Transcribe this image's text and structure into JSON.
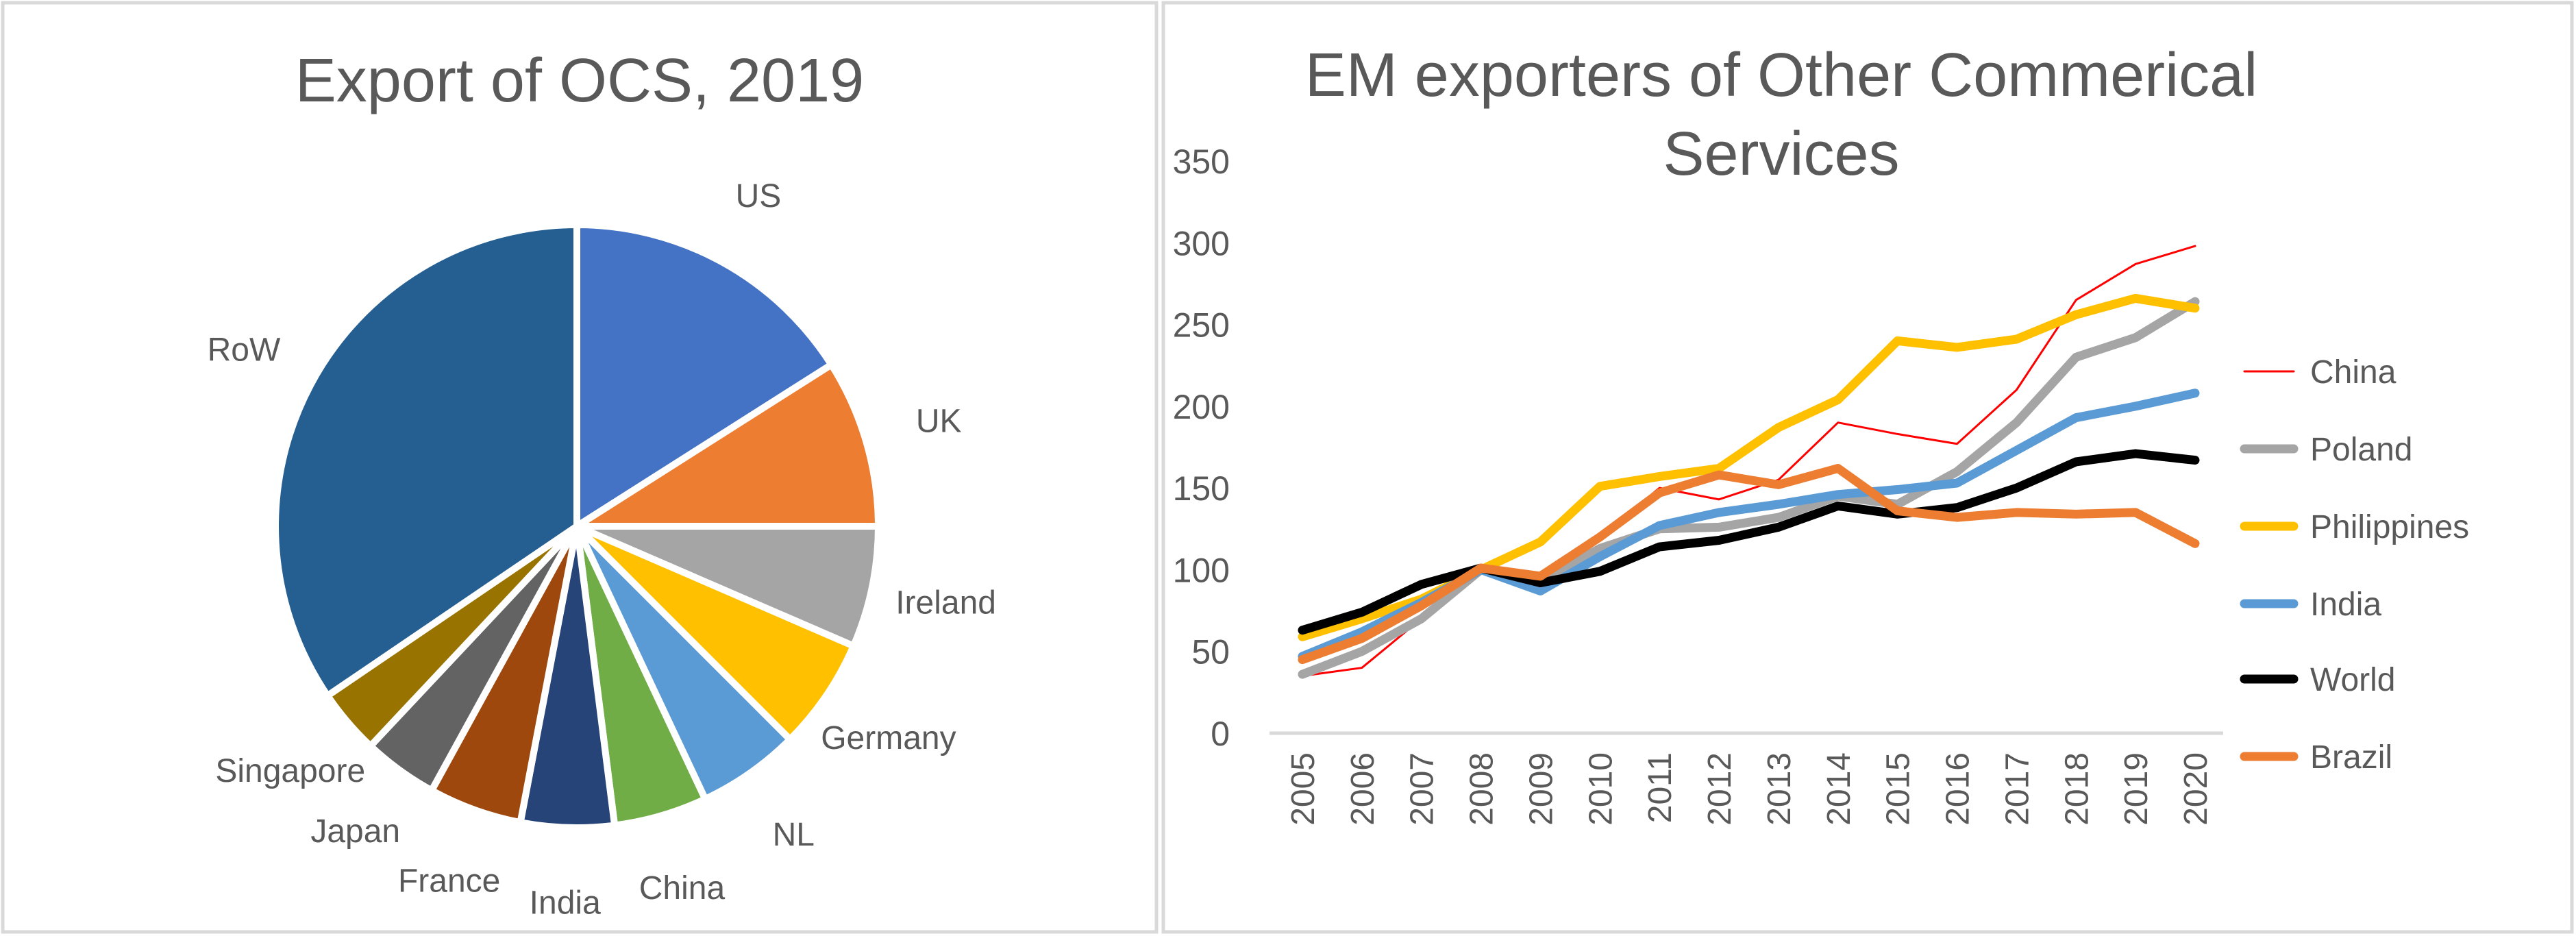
{
  "chart_data": [
    {
      "type": "pie",
      "title": "Export of OCS, 2019",
      "categories": [
        "US",
        "UK",
        "Ireland",
        "Germany",
        "NL",
        "China",
        "India",
        "France",
        "Japan",
        "Singapore",
        "RoW"
      ],
      "values": [
        16,
        9,
        6.5,
        6,
        5.5,
        5,
        5,
        5,
        4,
        3.5,
        34.5
      ],
      "unit": "percent share (estimated)",
      "colors": [
        "#4472C4",
        "#ED7D31",
        "#A5A5A5",
        "#FFC000",
        "#5B9BD5",
        "#70AD47",
        "#264478",
        "#9E480E",
        "#636363",
        "#997300",
        "#255E91"
      ]
    },
    {
      "type": "line",
      "title": "EM exporters of Other Commerical Services",
      "title_lines": [
        "EM exporters of Other Commerical",
        "Services"
      ],
      "xlabel": "",
      "ylabel": "",
      "x": [
        "2005",
        "2006",
        "2007",
        "2008",
        "2009",
        "2010",
        "2011",
        "2012",
        "2013",
        "2014",
        "2015",
        "2016",
        "2017",
        "2018",
        "2019",
        "2020"
      ],
      "ylim": [
        0,
        350
      ],
      "yticks": [
        "0",
        "50",
        "100",
        "150",
        "200",
        "250",
        "300",
        "350"
      ],
      "legend_position": "right",
      "grid": false,
      "series": [
        {
          "name": "China",
          "color": "#FF0000",
          "width": "thin",
          "values": [
            35,
            40,
            70,
            100,
            95,
            120,
            150,
            143,
            155,
            190,
            183,
            177,
            210,
            265,
            287,
            298
          ]
        },
        {
          "name": "Poland",
          "color": "#A5A5A5",
          "width": "thick",
          "values": [
            36,
            50,
            70,
            100,
            93,
            113,
            125,
            126,
            132,
            145,
            140,
            160,
            190,
            230,
            242,
            264
          ]
        },
        {
          "name": "Philippines",
          "color": "#FFC000",
          "width": "thick",
          "values": [
            59,
            70,
            82,
            100,
            117,
            151,
            157,
            162,
            187,
            204,
            240,
            236,
            241,
            256,
            266,
            260
          ]
        },
        {
          "name": "India",
          "color": "#5B9BD5",
          "width": "thick",
          "values": [
            47,
            62,
            80,
            100,
            87,
            108,
            127,
            135,
            140,
            146,
            149,
            153,
            173,
            193,
            200,
            208
          ]
        },
        {
          "name": "World",
          "color": "#000000",
          "width": "thick",
          "values": [
            63,
            74,
            91,
            101,
            92,
            99,
            114,
            118,
            126,
            139,
            134,
            138,
            150,
            166,
            171,
            167
          ]
        },
        {
          "name": "Brazil",
          "color": "#ED7D31",
          "width": "thick",
          "values": [
            45,
            58,
            78,
            101,
            96,
            120,
            147,
            158,
            152,
            162,
            136,
            132,
            135,
            134,
            135,
            116
          ]
        }
      ]
    }
  ]
}
